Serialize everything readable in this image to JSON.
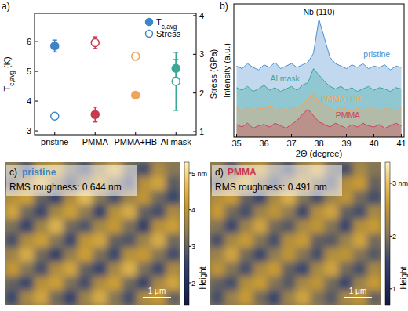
{
  "chart_data": [
    {
      "type": "scatter",
      "title": "a)",
      "categories": [
        "pristine",
        "PMMA",
        "PMMA+HB",
        "Al mask"
      ],
      "colors": [
        "#3d85c6",
        "#c83a4e",
        "#f0a35a",
        "#3aa897"
      ],
      "ylabel": "Tc,avg (K)",
      "y2label": "Stress (GPa)",
      "ylim": [
        2.87,
        6.95
      ],
      "yticks": [
        3,
        4,
        5,
        6
      ],
      "y2lim": [
        0.92,
        4.06
      ],
      "y2ticks": [
        1,
        2,
        3,
        4
      ],
      "legend": "top right",
      "series": [
        {
          "name": "Tc,avg",
          "marker": "filled",
          "values": [
            5.85,
            3.55,
            4.2,
            5.1
          ],
          "errors": [
            0.2,
            0.25,
            0.02,
            0.3
          ]
        },
        {
          "name": "Stress",
          "marker": "open",
          "axis": "y2",
          "values": [
            1.4,
            3.3,
            2.95,
            2.3
          ],
          "errors": [
            0.08,
            0.15,
            0.1,
            0.75
          ]
        }
      ]
    },
    {
      "type": "area",
      "title": "b)",
      "xlabel": "2Θ (degree)",
      "ylabel": "Intensity (a.u.)",
      "annotations": [
        "Nb (110)"
      ],
      "x": [
        35.0,
        35.2,
        35.4,
        35.6,
        35.8,
        36.0,
        36.2,
        36.4,
        36.6,
        36.8,
        37.0,
        37.2,
        37.4,
        37.6,
        37.8,
        38.0,
        38.2,
        38.4,
        38.6,
        38.8,
        39.0,
        39.2,
        39.4,
        39.6,
        39.8,
        40.0,
        40.2,
        40.4,
        40.6,
        40.8,
        41.0
      ],
      "xlim": [
        34.9,
        41.1
      ],
      "xticks": [
        35,
        36,
        37,
        38,
        39,
        40,
        41
      ],
      "ylim": [
        0,
        10.5
      ],
      "series": [
        {
          "name": "pristine",
          "color": "#4d8fd1",
          "values": [
            5.6,
            5.4,
            5.8,
            5.5,
            5.3,
            5.7,
            5.5,
            5.9,
            5.4,
            5.6,
            5.8,
            5.5,
            5.7,
            5.9,
            6.6,
            9.3,
            7.8,
            6.3,
            5.8,
            5.6,
            5.4,
            5.7,
            5.5,
            5.8,
            5.4,
            5.6,
            5.5,
            5.7,
            5.3,
            5.6,
            5.5
          ]
        },
        {
          "name": "Al mask",
          "color": "#38a89a",
          "values": [
            3.9,
            3.7,
            4.0,
            3.6,
            3.8,
            4.1,
            3.7,
            3.9,
            3.6,
            3.8,
            4.0,
            3.7,
            4.1,
            4.3,
            5.4,
            4.9,
            4.4,
            4.0,
            3.8,
            4.0,
            3.7,
            3.9,
            3.6,
            3.8,
            4.0,
            3.7,
            3.9,
            3.8,
            3.6,
            3.9,
            3.8
          ]
        },
        {
          "name": "PMMA+HB",
          "color": "#f2a65a",
          "values": [
            2.3,
            2.1,
            2.4,
            2.0,
            2.3,
            2.2,
            2.5,
            2.1,
            2.3,
            2.0,
            2.4,
            2.2,
            2.6,
            3.0,
            3.4,
            2.8,
            2.5,
            2.3,
            2.1,
            2.4,
            2.2,
            2.0,
            2.3,
            2.1,
            2.4,
            2.2,
            2.0,
            2.3,
            2.2,
            2.1,
            2.3
          ]
        },
        {
          "name": "PMMA",
          "color": "#c8455a",
          "values": [
            1.0,
            0.8,
            1.1,
            0.7,
            0.9,
            1.0,
            0.8,
            1.1,
            0.9,
            0.7,
            1.0,
            1.3,
            1.8,
            2.2,
            1.7,
            1.2,
            1.0,
            0.8,
            1.1,
            0.9,
            0.7,
            1.0,
            0.8,
            1.1,
            0.9,
            0.8,
            1.0,
            0.7,
            0.9,
            1.1,
            0.9
          ]
        }
      ]
    },
    {
      "type": "heatmap",
      "title": "c)",
      "subtitle": "pristine",
      "color": "#3d85c6",
      "annotations": [
        "RMS roughness: 0.644 nm",
        "1 μm"
      ],
      "colorbar_label": "Height",
      "colorbar_range": [
        1.4,
        5.3
      ],
      "colorbar_ticks": [
        2,
        3,
        4,
        {
          "value": 5,
          "label": "5 nm"
        }
      ],
      "cells": [
        [
          3.4,
          2.6,
          3.9,
          4.2,
          3.1,
          2.5,
          3.6,
          4.4,
          3.0,
          2.7,
          3.8,
          3.3
        ],
        [
          2.8,
          3.7,
          4.5,
          3.3,
          2.4,
          3.5,
          4.1,
          3.2,
          2.6,
          3.9,
          4.3,
          2.9
        ],
        [
          3.9,
          4.2,
          3.0,
          2.5,
          3.8,
          4.6,
          3.3,
          2.7,
          3.6,
          4.0,
          3.1,
          2.6
        ],
        [
          4.3,
          3.1,
          2.6,
          3.7,
          4.2,
          3.4,
          2.5,
          3.9,
          4.4,
          3.0,
          2.7,
          3.8
        ],
        [
          3.2,
          2.5,
          3.6,
          4.5,
          3.1,
          2.8,
          3.7,
          4.1,
          3.2,
          2.4,
          3.9,
          4.2
        ],
        [
          2.7,
          3.8,
          4.2,
          3.3,
          2.6,
          4.0,
          4.3,
          3.0,
          2.8,
          3.6,
          4.4,
          3.1
        ],
        [
          3.6,
          4.4,
          3.1,
          2.4,
          3.5,
          4.2,
          3.2,
          2.6,
          3.9,
          4.1,
          3.3,
          2.7
        ],
        [
          4.1,
          3.3,
          2.7,
          3.8,
          4.3,
          3.0,
          2.5,
          3.7,
          4.5,
          3.2,
          2.6,
          3.8
        ],
        [
          3.0,
          2.6,
          3.9,
          4.2,
          3.2,
          2.7,
          3.8,
          4.2,
          3.1,
          2.5,
          3.7,
          4.3
        ],
        [
          2.6,
          3.7,
          4.3,
          3.1,
          2.5,
          3.6,
          4.4,
          3.3,
          2.7,
          3.8,
          4.1,
          3.0
        ]
      ]
    },
    {
      "type": "heatmap",
      "title": "d)",
      "subtitle": "PMMA",
      "color": "#c83a4e",
      "annotations": [
        "RMS roughness: 0.491 nm",
        "1 μm"
      ],
      "colorbar_label": "Height",
      "colorbar_range": [
        0.7,
        3.4
      ],
      "colorbar_ticks": [
        1,
        2,
        {
          "value": 3,
          "label": "3 nm"
        }
      ],
      "cells": [
        [
          2.1,
          1.6,
          2.4,
          2.6,
          1.9,
          1.5,
          2.2,
          2.7,
          1.8,
          1.6,
          2.3,
          2.0
        ],
        [
          1.7,
          2.3,
          2.7,
          2.0,
          1.5,
          2.1,
          2.5,
          1.9,
          1.6,
          2.4,
          2.6,
          1.8
        ],
        [
          2.4,
          2.6,
          1.8,
          1.5,
          2.3,
          2.8,
          2.0,
          1.6,
          2.2,
          2.5,
          1.9,
          1.6
        ],
        [
          2.6,
          1.9,
          1.6,
          2.2,
          2.5,
          2.1,
          1.5,
          2.4,
          2.7,
          1.8,
          1.6,
          2.3
        ],
        [
          2.0,
          1.5,
          2.2,
          2.7,
          1.9,
          1.7,
          2.3,
          2.5,
          2.0,
          1.5,
          2.4,
          2.6
        ],
        [
          1.6,
          2.3,
          2.6,
          2.0,
          1.6,
          2.4,
          2.6,
          1.8,
          1.7,
          2.2,
          2.7,
          1.9
        ],
        [
          2.2,
          2.7,
          1.9,
          1.5,
          2.1,
          2.5,
          2.0,
          1.6,
          2.4,
          2.5,
          2.0,
          1.7
        ],
        [
          2.5,
          2.0,
          1.6,
          2.3,
          2.6,
          1.8,
          1.5,
          2.3,
          2.7,
          1.9,
          1.6,
          2.3
        ],
        [
          1.8,
          1.6,
          2.4,
          2.6,
          2.0,
          1.7,
          2.3,
          2.5,
          1.9,
          1.5,
          2.2,
          2.6
        ],
        [
          1.6,
          2.2,
          2.6,
          1.9,
          1.5,
          2.2,
          2.7,
          2.0,
          1.7,
          2.3,
          2.5,
          1.8
        ]
      ]
    }
  ]
}
